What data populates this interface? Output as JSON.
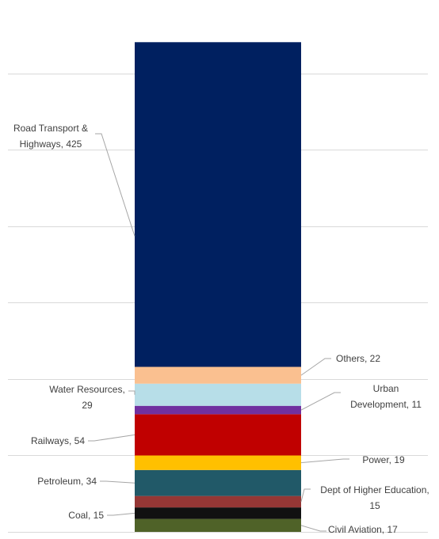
{
  "chart_data": {
    "type": "bar",
    "stacked": true,
    "categories": [
      ""
    ],
    "ylim": [
      0,
      690
    ],
    "grid": true,
    "legend": "none",
    "series": [
      {
        "name": "Civil Aviation",
        "values": [
          17
        ],
        "color": "#4F6228",
        "label_lines": [
          "Civil Aviation, 17"
        ]
      },
      {
        "name": "Coal",
        "values": [
          15
        ],
        "color": "#111111",
        "label_lines": [
          "Coal, 15"
        ]
      },
      {
        "name": "Dept of Higher Education",
        "values": [
          15
        ],
        "color": "#953735",
        "label_lines": [
          "Dept of Higher Education,",
          "15"
        ]
      },
      {
        "name": "Petroleum",
        "values": [
          34
        ],
        "color": "#215968",
        "label_lines": [
          "Petroleum, 34"
        ]
      },
      {
        "name": "Power",
        "values": [
          19
        ],
        "color": "#FFC000",
        "label_lines": [
          "Power, 19"
        ]
      },
      {
        "name": "Railways",
        "values": [
          54
        ],
        "color": "#C00000",
        "label_lines": [
          "Railways, 54"
        ]
      },
      {
        "name": "Urban Development",
        "values": [
          11
        ],
        "color": "#7030A0",
        "label_lines": [
          "Urban",
          "Development, 11"
        ]
      },
      {
        "name": "Water Resources",
        "values": [
          29
        ],
        "color": "#B7DEE8",
        "label_lines": [
          "Water Resources,",
          "29"
        ]
      },
      {
        "name": "Others",
        "values": [
          22
        ],
        "color": "#FAC090",
        "label_lines": [
          "Others, 22"
        ]
      },
      {
        "name": "Road Transport & Highways",
        "values": [
          425
        ],
        "color": "#002060",
        "label_lines": [
          "Road Transport &",
          "Highways, 425"
        ]
      }
    ]
  }
}
